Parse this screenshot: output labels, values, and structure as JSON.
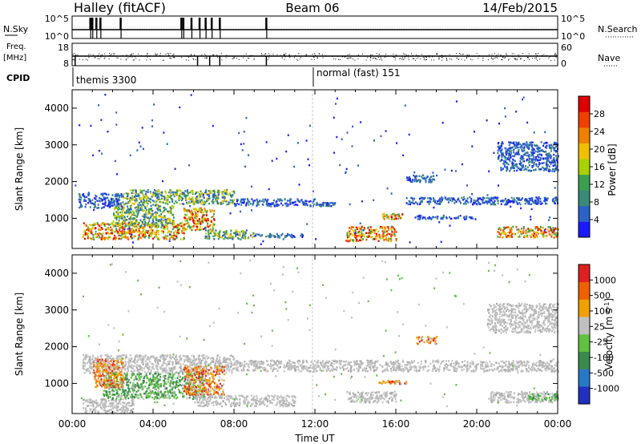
{
  "header": {
    "station": "Halley (fitACF)",
    "beam": "Beam 06",
    "date": "14/Feb/2015"
  },
  "side_labels": {
    "nsky": "N.Sky",
    "freq_line1": "Freq.",
    "freq_line2": "[MHz]",
    "cpid": "CPID",
    "nsearch": "N.Search",
    "nave": "Nave"
  },
  "chart_data": [
    {
      "type": "line",
      "title": "N.Sky / N.Search",
      "ylabel_left": "N.Sky",
      "ylabel_right": "N.Search",
      "left_ticks": [
        "10^5",
        "10^0"
      ],
      "right_ticks": [
        "10^5",
        "10^0"
      ],
      "scale": "log",
      "ylim": [
        1,
        100000
      ],
      "nsky_spikes_hours": [
        0.9,
        1.0,
        1.2,
        1.4,
        2.4,
        5.4,
        5.5,
        5.9,
        6.3,
        6.6,
        6.9,
        7.3,
        9.6
      ]
    },
    {
      "type": "line",
      "title": "Freq. / Nave",
      "ylabel_left": "Freq. [MHz]",
      "ylabel_right": "Nave",
      "left_ticks": [
        "18",
        "8"
      ],
      "right_ticks": [
        "60",
        "0"
      ],
      "ylim_left": [
        8,
        18
      ],
      "ylim_right": [
        0,
        60
      ]
    },
    {
      "type": "table",
      "title": "CPID",
      "segments": [
        {
          "label": "themis 3300",
          "start_hour": 0,
          "end_hour": 12
        },
        {
          "label": "normal (fast) 151",
          "start_hour": 12,
          "end_hour": 24
        }
      ]
    },
    {
      "type": "heatmap",
      "title": "Power",
      "ylabel": "Slant Range [km]",
      "ylim": [
        180,
        4500
      ],
      "yticks": [
        "1000",
        "2000",
        "3000",
        "4000"
      ],
      "xlim": [
        0,
        24
      ],
      "colorbar_label": "Power [dB]",
      "colorbar_ticks": [
        "4",
        "8",
        "12",
        "16",
        "20",
        "24",
        "28"
      ],
      "colorbar_colors": [
        "#1a1aff",
        "#2a62c8",
        "#3a8a78",
        "#3aa050",
        "#aad000",
        "#f0c000",
        "#f08000",
        "#f04000",
        "#e00000"
      ],
      "echo_regions": [
        {
          "t0": 0.3,
          "t1": 2.5,
          "r0": 1300,
          "r1": 1700,
          "level": "low"
        },
        {
          "t0": 2.5,
          "t1": 8.0,
          "r0": 1400,
          "r1": 1800,
          "level": "mid"
        },
        {
          "t0": 8.0,
          "t1": 12.0,
          "r0": 1350,
          "r1": 1550,
          "level": "low"
        },
        {
          "t0": 12.0,
          "t1": 13.0,
          "r0": 1350,
          "r1": 1450,
          "level": "low"
        },
        {
          "t0": 0.5,
          "t1": 5.5,
          "r0": 450,
          "r1": 900,
          "level": "high"
        },
        {
          "t0": 5.5,
          "t1": 7.0,
          "r0": 700,
          "r1": 1300,
          "level": "high"
        },
        {
          "t0": 2.0,
          "t1": 5.0,
          "r0": 800,
          "r1": 1400,
          "level": "mid"
        },
        {
          "t0": 6.5,
          "t1": 9.0,
          "r0": 450,
          "r1": 700,
          "level": "mid"
        },
        {
          "t0": 9.0,
          "t1": 11.5,
          "r0": 500,
          "r1": 600,
          "level": "low"
        },
        {
          "t0": 13.5,
          "t1": 16.0,
          "r0": 400,
          "r1": 800,
          "level": "high"
        },
        {
          "t0": 15.3,
          "t1": 16.3,
          "r0": 1000,
          "r1": 1150,
          "level": "high"
        },
        {
          "t0": 16.5,
          "t1": 24.0,
          "r0": 1400,
          "r1": 1600,
          "level": "low"
        },
        {
          "t0": 17.0,
          "t1": 20.0,
          "r0": 1000,
          "r1": 1100,
          "level": "low"
        },
        {
          "t0": 21.0,
          "t1": 24.0,
          "r0": 500,
          "r1": 800,
          "level": "high"
        },
        {
          "t0": 21.0,
          "t1": 24.0,
          "r0": 2300,
          "r1": 3100,
          "level": "low"
        },
        {
          "t0": 16.5,
          "t1": 18.0,
          "r0": 2000,
          "r1": 2200,
          "level": "low"
        }
      ]
    },
    {
      "type": "heatmap",
      "title": "Velocity",
      "ylabel": "Slant Range [km]",
      "xlabel": "Time UT",
      "ylim": [
        180,
        4500
      ],
      "yticks": [
        "1000",
        "2000",
        "3000",
        "4000"
      ],
      "xlim": [
        0,
        24
      ],
      "xticks": [
        "00:00",
        "04:00",
        "08:00",
        "12:00",
        "16:00",
        "20:00",
        "00:00"
      ],
      "colorbar_label": "Velocity [m s",
      "colorbar_superscript": "-1",
      "colorbar_label_end": "]",
      "colorbar_ticks": [
        "1000",
        "500",
        "100",
        "25",
        "-25",
        "-100",
        "-500",
        "-1000"
      ],
      "colorbar_colors": [
        "#2030c0",
        "#2878c8",
        "#3a8a50",
        "#60c040",
        "#c0c0c0",
        "#f0a000",
        "#f06000",
        "#e02020"
      ],
      "echo_regions": [
        {
          "t0": 0.5,
          "t1": 8.0,
          "r0": 1300,
          "r1": 1800,
          "level": "gray"
        },
        {
          "t0": 8.0,
          "t1": 24.0,
          "r0": 1350,
          "r1": 1650,
          "level": "gray"
        },
        {
          "t0": 0.5,
          "t1": 3.0,
          "r0": 200,
          "r1": 600,
          "level": "gray"
        },
        {
          "t0": 1.5,
          "t1": 6.5,
          "r0": 600,
          "r1": 1300,
          "level": "green"
        },
        {
          "t0": 1.0,
          "t1": 2.5,
          "r0": 900,
          "r1": 1700,
          "level": "orange"
        },
        {
          "t0": 5.5,
          "t1": 7.5,
          "r0": 700,
          "r1": 1500,
          "level": "orange"
        },
        {
          "t0": 6.0,
          "t1": 11.0,
          "r0": 400,
          "r1": 700,
          "level": "gray"
        },
        {
          "t0": 13.5,
          "t1": 16.0,
          "r0": 500,
          "r1": 800,
          "level": "gray"
        },
        {
          "t0": 15.0,
          "t1": 16.5,
          "r0": 1000,
          "r1": 1100,
          "level": "orange"
        },
        {
          "t0": 17.0,
          "t1": 18.0,
          "r0": 2100,
          "r1": 2300,
          "level": "orange"
        },
        {
          "t0": 20.5,
          "t1": 24.0,
          "r0": 500,
          "r1": 800,
          "level": "gray"
        },
        {
          "t0": 22.5,
          "t1": 24.0,
          "r0": 550,
          "r1": 750,
          "level": "green"
        },
        {
          "t0": 20.5,
          "t1": 24.0,
          "r0": 2400,
          "r1": 3200,
          "level": "gray"
        }
      ]
    }
  ]
}
